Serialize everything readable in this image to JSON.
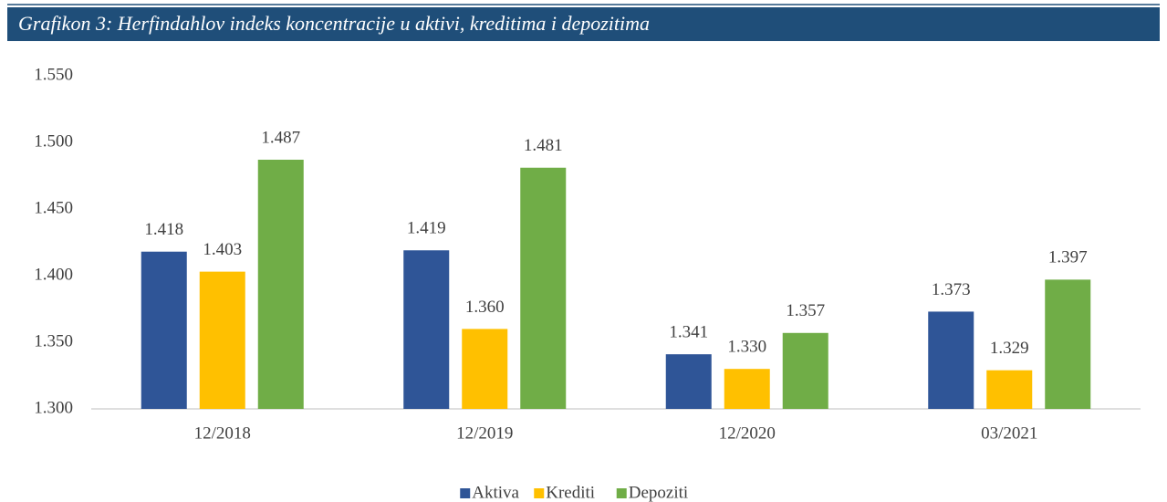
{
  "chart_data": {
    "type": "bar",
    "title": "Grafikon 3: Herfindahlov indeks koncentracije u aktivi, kreditima i depozitima",
    "categories": [
      "12/2018",
      "12/2019",
      "12/2020",
      "03/2021"
    ],
    "series": [
      {
        "name": "Aktiva",
        "color": "#2f5597",
        "values": [
          1418,
          1419,
          1341,
          1373
        ],
        "value_labels": [
          "1.418",
          "1.419",
          "1.341",
          "1.373"
        ]
      },
      {
        "name": "Krediti",
        "color": "#ffc000",
        "values": [
          1403,
          1360,
          1330,
          1329
        ],
        "value_labels": [
          "1.403",
          "1.360",
          "1.330",
          "1.329"
        ]
      },
      {
        "name": "Depoziti",
        "color": "#70ad47",
        "values": [
          1487,
          1481,
          1357,
          1397
        ],
        "value_labels": [
          "1.487",
          "1.481",
          "1.357",
          "1.397"
        ]
      }
    ],
    "ylim": [
      1300,
      1550
    ],
    "yticks": [
      {
        "value": 1300,
        "label": "1.300"
      },
      {
        "value": 1350,
        "label": "1.350"
      },
      {
        "value": 1400,
        "label": "1.400"
      },
      {
        "value": 1450,
        "label": "1.450"
      },
      {
        "value": 1500,
        "label": "1.500"
      },
      {
        "value": 1550,
        "label": "1.550"
      }
    ],
    "grid": false,
    "legend": "bottom"
  }
}
